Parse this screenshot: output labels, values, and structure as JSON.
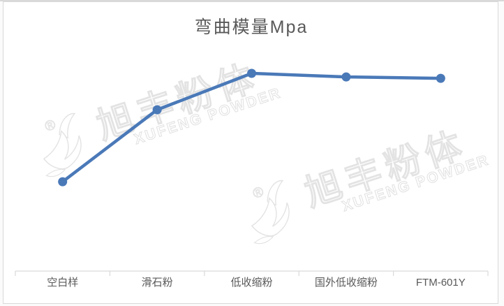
{
  "title": "弯曲模量Mpa",
  "watermark": {
    "logo": "xufeng-swoosh-logo",
    "registered_mark": "®",
    "cn_text": "旭丰粉体",
    "en_text": "XUFENG POWDER"
  },
  "colors": {
    "line": "#4a79b8",
    "axis": "#d9d9d9",
    "text": "#595959",
    "watermark_outline": "#e3e3e3"
  },
  "chart_data": {
    "type": "line",
    "title": "弯曲模量Mpa",
    "categories": [
      "空白样",
      "滑石粉",
      "低收缩粉",
      "国外低收缩粉",
      "FTM-601Y"
    ],
    "series": [
      {
        "name": "弯曲模量Mpa",
        "values_pct_of_max": [
          45.2,
          81.6,
          100,
          98.2,
          97.5
        ]
      }
    ],
    "xlabel": "",
    "ylabel": "",
    "y_axis_tick_labels_visible": false,
    "note": "No numeric y-axis is rendered in the chart; values are relative point heights (% of maximum, which occurs at 低收缩粉) estimated from pixel positions.",
    "marker": "circle",
    "legend": "none",
    "gridlines": "off"
  }
}
